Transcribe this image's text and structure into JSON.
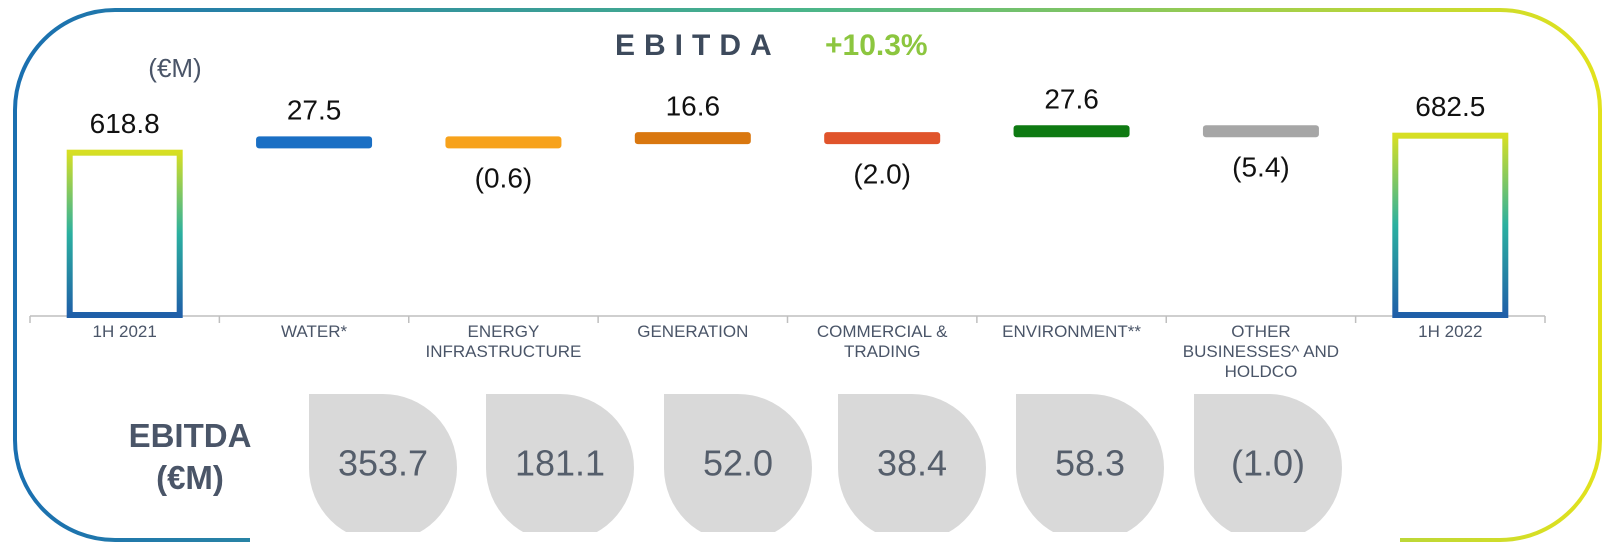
{
  "chart_data": {
    "type": "waterfall",
    "title": "EBITDA",
    "change_label": "+10.3%",
    "unit_label": "(€M)",
    "categories": [
      "1H 2021",
      "WATER*",
      "ENERGY INFRASTRUCTURE",
      "GENERATION",
      "COMMERCIAL & TRADING",
      "ENVIRONMENT**",
      "OTHER BUSINESSES^ AND HOLDCO",
      "1H 2022"
    ],
    "values": [
      618.8,
      27.5,
      -0.6,
      16.6,
      -2.0,
      27.6,
      -5.4,
      682.5
    ],
    "value_labels": [
      "618.8",
      "27.5",
      "(0.6)",
      "16.6",
      "(2.0)",
      "27.6",
      "(5.4)",
      "682.5"
    ],
    "is_total": [
      true,
      false,
      false,
      false,
      false,
      false,
      false,
      true
    ],
    "colors": [
      "#1f5fa8",
      "#1a6fc4",
      "#f7a21b",
      "#d9770f",
      "#e0542b",
      "#0e7a12",
      "#a6a6a6",
      "#1f5fa8"
    ],
    "ylim": [
      0,
      700
    ],
    "breakdown": {
      "label": "EBITDA (€M)",
      "values": [
        353.7,
        181.1,
        52.0,
        38.4,
        58.3,
        -1.0
      ],
      "value_labels": [
        "353.7",
        "181.1",
        "52.0",
        "38.4",
        "58.3",
        "(1.0)"
      ]
    }
  }
}
